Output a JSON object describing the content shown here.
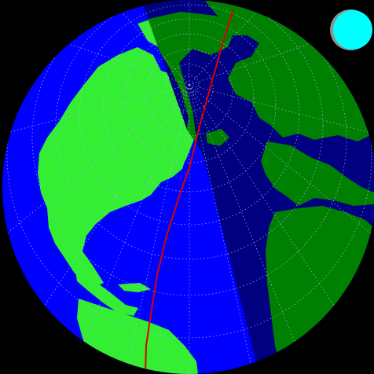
{
  "colors": {
    "background": "#000000",
    "ocean_day": "#0000ff",
    "ocean_night": "#000080",
    "land_day": "#33ee33",
    "land_night": "#008000",
    "graticule": "#b8b8ff",
    "track": "#dd0000",
    "moon_lit": "#00ffff",
    "moon_dark": "#909090"
  },
  "icons": {
    "globe": "globe-icon",
    "moon": "moon-phase-icon"
  }
}
